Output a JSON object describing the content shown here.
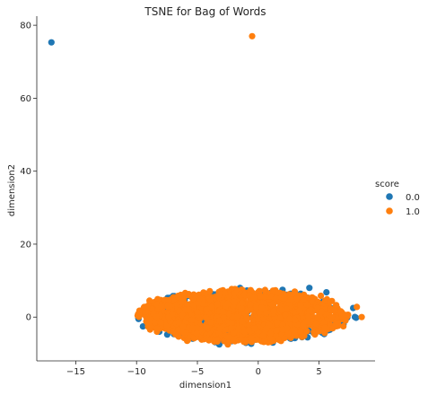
{
  "chart_data": {
    "type": "scatter",
    "title": "TSNE for Bag of Words",
    "xlabel": "dimension1",
    "ylabel": "dimension2",
    "xlim": [
      -18.2,
      9.6
    ],
    "ylim": [
      -12,
      82
    ],
    "xticks": [
      -15,
      -10,
      -5,
      0,
      5
    ],
    "yticks": [
      0,
      20,
      40,
      60,
      80
    ],
    "grid": false,
    "legend": {
      "title": "score",
      "placement": "right",
      "entries": [
        {
          "label": "0.0",
          "color": "#1f77b4"
        },
        {
          "label": "1.0",
          "color": "#ff7f0e"
        }
      ]
    },
    "series": [
      {
        "name": "0.0",
        "color": "#1f77b4",
        "points": [
          [
            -17.0,
            75.3
          ],
          [
            4.2,
            8.0
          ],
          [
            5.6,
            6.8
          ],
          [
            -9.0,
            2.6
          ],
          [
            -8.8,
            2.6
          ],
          [
            7.8,
            2.5
          ],
          [
            6.3,
            -1.5
          ],
          [
            5.8,
            -3.5
          ],
          [
            3.6,
            -5.5
          ],
          [
            -3.2,
            -7.5
          ],
          [
            -5.6,
            -5.5
          ],
          [
            -7.5,
            -3.0
          ],
          [
            -8.7,
            -0.5
          ],
          [
            2.0,
            7.5
          ],
          [
            -1.5,
            8.0
          ],
          [
            1.2,
            -7.0
          ],
          [
            -6.2,
            5.0
          ],
          [
            6.8,
            0.5
          ]
        ]
      },
      {
        "name": "1.0",
        "color": "#ff7f0e",
        "points": [
          [
            -0.5,
            77.0
          ],
          [
            8.5,
            0.0
          ],
          [
            8.1,
            2.8
          ],
          [
            -9.3,
            2.8
          ],
          [
            -6.0,
            6.6
          ],
          [
            7.0,
            -2.5
          ],
          [
            -7.0,
            -4.0
          ],
          [
            3.0,
            7.0
          ],
          [
            -2.5,
            -7.5
          ]
        ]
      }
    ],
    "clusters": [
      {
        "series": "0.0",
        "cx": -1.2,
        "cy": 0.2,
        "sx": 9.4,
        "sy": 7.5,
        "n": 360
      },
      {
        "series": "1.0",
        "cx": -1.3,
        "cy": 0.3,
        "sx": 9.0,
        "sy": 7.4,
        "n": 1500
      }
    ]
  }
}
